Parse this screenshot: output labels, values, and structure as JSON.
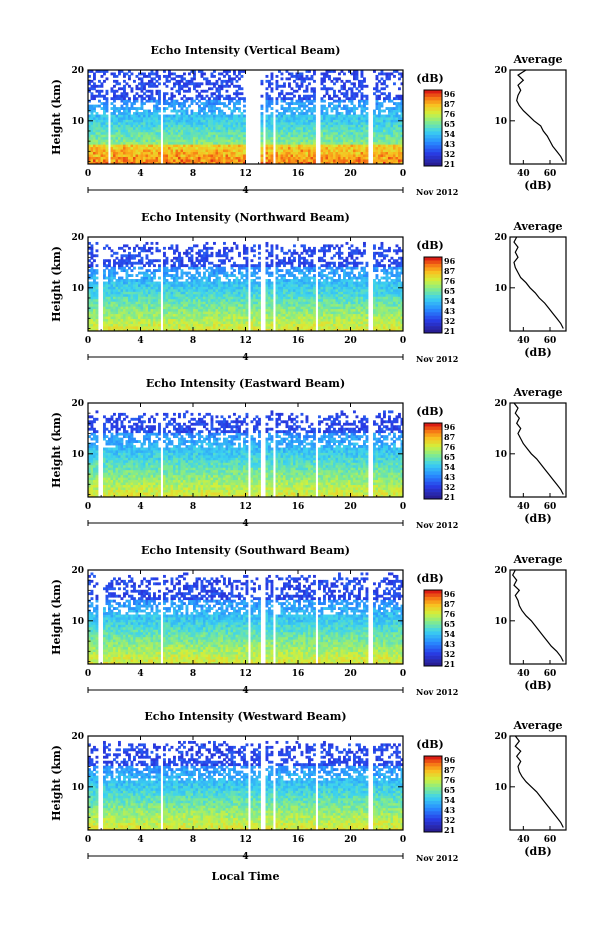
{
  "figure": {
    "x_axis_label": "Local Time",
    "date_label": "Nov 2012",
    "day_label": "4",
    "colorbar_unit": "(dB)",
    "colorbar_ticks": [
      "96",
      "87",
      "76",
      "65",
      "54",
      "43",
      "32",
      "21"
    ],
    "average_title": "Average",
    "average_xlabel": "(dB)"
  },
  "chart_data": [
    {
      "type": "heatmap",
      "title": "Echo Intensity (Vertical Beam)",
      "ylabel": "Height (km)",
      "xlabel": "Local Time",
      "x_ticks": [
        "0",
        "4",
        "8",
        "12",
        "16",
        "20",
        "0"
      ],
      "y_ticks": [
        "10",
        "20"
      ],
      "xlim": [
        0,
        24
      ],
      "ylim": [
        1.5,
        20
      ],
      "colorbar_range": [
        21,
        96
      ],
      "data_gaps_hours": [
        [
          1.6,
          1.8
        ],
        [
          5.6,
          5.8
        ],
        [
          12,
          13.1
        ],
        [
          13.4,
          13.6
        ],
        [
          14.1,
          14.3
        ],
        [
          17.3,
          17.7
        ],
        [
          21.4,
          21.7
        ]
      ],
      "average_profile": {
        "title": "Average",
        "xlabel": "(dB)",
        "x_ticks": [
          "40",
          "60"
        ],
        "y_ticks": [
          "10",
          "20"
        ],
        "xlim": [
          30,
          72
        ],
        "ylim": [
          1.5,
          20
        ],
        "height_km": [
          2,
          3,
          4,
          5,
          6,
          7,
          8,
          9,
          10,
          11,
          12,
          13,
          14,
          15,
          16,
          17,
          18,
          19,
          20
        ],
        "db": [
          70,
          68,
          65,
          62,
          60,
          58,
          55,
          53,
          48,
          44,
          40,
          37,
          35,
          36,
          38,
          36,
          40,
          36,
          42
        ]
      }
    },
    {
      "type": "heatmap",
      "title": "Echo Intensity (Northward Beam)",
      "ylabel": "Height (km)",
      "xlabel": "Local Time",
      "x_ticks": [
        "0",
        "4",
        "8",
        "12",
        "16",
        "20",
        "0"
      ],
      "y_ticks": [
        "10",
        "20"
      ],
      "xlim": [
        0,
        24
      ],
      "ylim": [
        1.5,
        20
      ],
      "colorbar_range": [
        21,
        96
      ],
      "data_gaps_hours": [
        [
          0.8,
          1.1
        ],
        [
          5.6,
          5.8
        ],
        [
          12.2,
          12.4
        ],
        [
          13.2,
          13.6
        ],
        [
          14.1,
          14.3
        ],
        [
          17.3,
          17.6
        ],
        [
          21.4,
          21.7
        ]
      ],
      "average_profile": {
        "title": "Average",
        "xlabel": "(dB)",
        "x_ticks": [
          "40",
          "60"
        ],
        "y_ticks": [
          "10",
          "20"
        ],
        "xlim": [
          30,
          72
        ],
        "ylim": [
          1.5,
          20
        ],
        "height_km": [
          2,
          3,
          4,
          5,
          6,
          7,
          8,
          9,
          10,
          11,
          12,
          13,
          14,
          15,
          16,
          17,
          18,
          19,
          20
        ],
        "db": [
          70,
          68,
          65,
          62,
          59,
          56,
          52,
          49,
          45,
          42,
          38,
          36,
          34,
          33,
          36,
          34,
          36,
          33,
          35
        ]
      }
    },
    {
      "type": "heatmap",
      "title": "Echo Intensity (Eastward Beam)",
      "ylabel": "Height (km)",
      "xlabel": "Local Time",
      "x_ticks": [
        "0",
        "4",
        "8",
        "12",
        "16",
        "20",
        "0"
      ],
      "y_ticks": [
        "10",
        "20"
      ],
      "xlim": [
        0,
        24
      ],
      "ylim": [
        1.5,
        20
      ],
      "colorbar_range": [
        21,
        96
      ],
      "data_gaps_hours": [
        [
          0.8,
          1.1
        ],
        [
          5.6,
          5.8
        ],
        [
          12.2,
          12.4
        ],
        [
          13.2,
          13.6
        ],
        [
          14.1,
          14.3
        ],
        [
          17.3,
          17.6
        ],
        [
          21.4,
          21.7
        ]
      ],
      "average_profile": {
        "title": "Average",
        "xlabel": "(dB)",
        "x_ticks": [
          "40",
          "60"
        ],
        "y_ticks": [
          "10",
          "20"
        ],
        "xlim": [
          30,
          72
        ],
        "ylim": [
          1.5,
          20
        ],
        "height_km": [
          2,
          3,
          4,
          5,
          6,
          7,
          8,
          9,
          10,
          11,
          12,
          13,
          14,
          15,
          16,
          17,
          18,
          19,
          20
        ],
        "db": [
          70,
          68,
          65,
          62,
          59,
          56,
          53,
          50,
          46,
          43,
          40,
          38,
          36,
          38,
          35,
          37,
          34,
          36,
          33
        ]
      }
    },
    {
      "type": "heatmap",
      "title": "Echo Intensity (Southward Beam)",
      "ylabel": "Height (km)",
      "xlabel": "Local Time",
      "x_ticks": [
        "0",
        "4",
        "8",
        "12",
        "16",
        "20",
        "0"
      ],
      "y_ticks": [
        "10",
        "20"
      ],
      "xlim": [
        0,
        24
      ],
      "ylim": [
        1.5,
        20
      ],
      "colorbar_range": [
        21,
        96
      ],
      "data_gaps_hours": [
        [
          0.8,
          1.1
        ],
        [
          5.6,
          5.8
        ],
        [
          12.2,
          12.4
        ],
        [
          13.2,
          13.6
        ],
        [
          14.1,
          14.3
        ],
        [
          17.3,
          17.6
        ],
        [
          21.4,
          21.7
        ]
      ],
      "average_profile": {
        "title": "Average",
        "xlabel": "(dB)",
        "x_ticks": [
          "40",
          "60"
        ],
        "y_ticks": [
          "10",
          "20"
        ],
        "xlim": [
          30,
          72
        ],
        "ylim": [
          1.5,
          20
        ],
        "height_km": [
          2,
          3,
          4,
          5,
          6,
          7,
          8,
          9,
          10,
          11,
          12,
          13,
          14,
          15,
          16,
          17,
          18,
          19,
          20
        ],
        "db": [
          70,
          68,
          65,
          61,
          58,
          55,
          52,
          49,
          46,
          42,
          39,
          37,
          36,
          34,
          37,
          33,
          35,
          32,
          34
        ]
      }
    },
    {
      "type": "heatmap",
      "title": "Echo Intensity (Westward Beam)",
      "ylabel": "Height (km)",
      "xlabel": "Local Time",
      "x_ticks": [
        "0",
        "4",
        "8",
        "12",
        "16",
        "20",
        "0"
      ],
      "y_ticks": [
        "10",
        "20"
      ],
      "xlim": [
        0,
        24
      ],
      "ylim": [
        1.5,
        20
      ],
      "colorbar_range": [
        21,
        96
      ],
      "data_gaps_hours": [
        [
          0.8,
          1.1
        ],
        [
          5.6,
          5.8
        ],
        [
          12.2,
          12.4
        ],
        [
          13.2,
          13.6
        ],
        [
          14.1,
          14.3
        ],
        [
          17.3,
          17.6
        ],
        [
          21.4,
          21.7
        ]
      ],
      "average_profile": {
        "title": "Average",
        "xlabel": "(dB)",
        "x_ticks": [
          "40",
          "60"
        ],
        "y_ticks": [
          "10",
          "20"
        ],
        "xlim": [
          30,
          72
        ],
        "ylim": [
          1.5,
          20
        ],
        "height_km": [
          2,
          3,
          4,
          5,
          6,
          7,
          8,
          9,
          10,
          11,
          12,
          13,
          14,
          15,
          16,
          17,
          18,
          19,
          20
        ],
        "db": [
          70,
          68,
          65,
          62,
          59,
          56,
          53,
          50,
          46,
          42,
          39,
          37,
          36,
          38,
          35,
          38,
          34,
          37,
          34
        ]
      }
    }
  ]
}
